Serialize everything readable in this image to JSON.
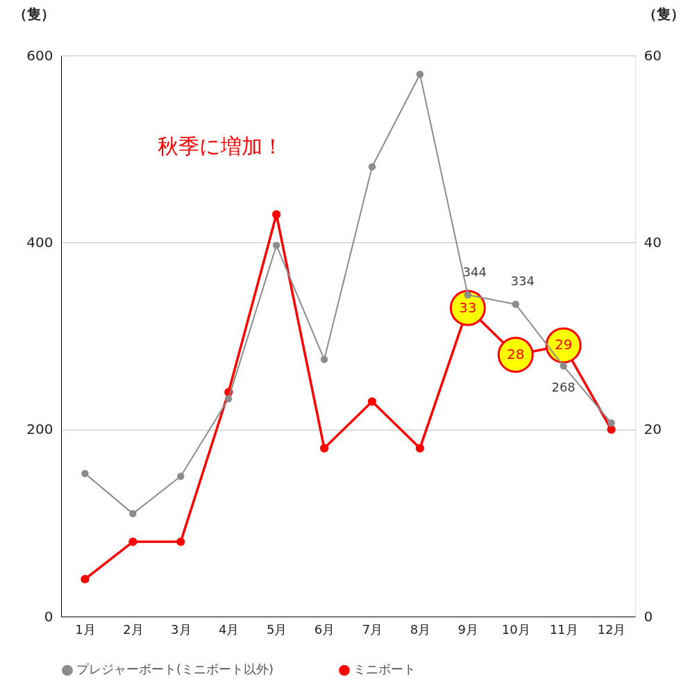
{
  "chart_data": {
    "type": "line",
    "categories": [
      "1月",
      "2月",
      "3月",
      "4月",
      "5月",
      "6月",
      "7月",
      "8月",
      "9月",
      "10月",
      "11月",
      "12月"
    ],
    "series": [
      {
        "name": "プレジャーボート(ミニボート以外)",
        "color": "#8c8c8c",
        "values": [
          153,
          110,
          150,
          233,
          397,
          275,
          481,
          580,
          344,
          334,
          268,
          207
        ],
        "value_labels": [
          null,
          null,
          null,
          null,
          null,
          null,
          null,
          null,
          "344",
          "334",
          "268",
          null
        ]
      },
      {
        "name": "ミニボート",
        "color": "#ff0000",
        "axis": "y2",
        "values": [
          4,
          8,
          8,
          24,
          43,
          18,
          23,
          18,
          33,
          28,
          29,
          20
        ],
        "value_labels": [
          null,
          null,
          null,
          null,
          null,
          null,
          null,
          null,
          "33",
          "28",
          "29",
          null
        ]
      }
    ],
    "ylabel": "（隻）",
    "y2label": "（隻）",
    "ylim": [
      0,
      600
    ],
    "yticks": [
      0,
      200,
      400,
      600
    ],
    "y2lim": [
      0,
      60
    ],
    "y2ticks": [
      0,
      20,
      40,
      60
    ],
    "grid": "y",
    "marker": "circle",
    "line_style": "solid",
    "legend": "bottom",
    "annotations": [
      "秋季に増加！"
    ]
  }
}
